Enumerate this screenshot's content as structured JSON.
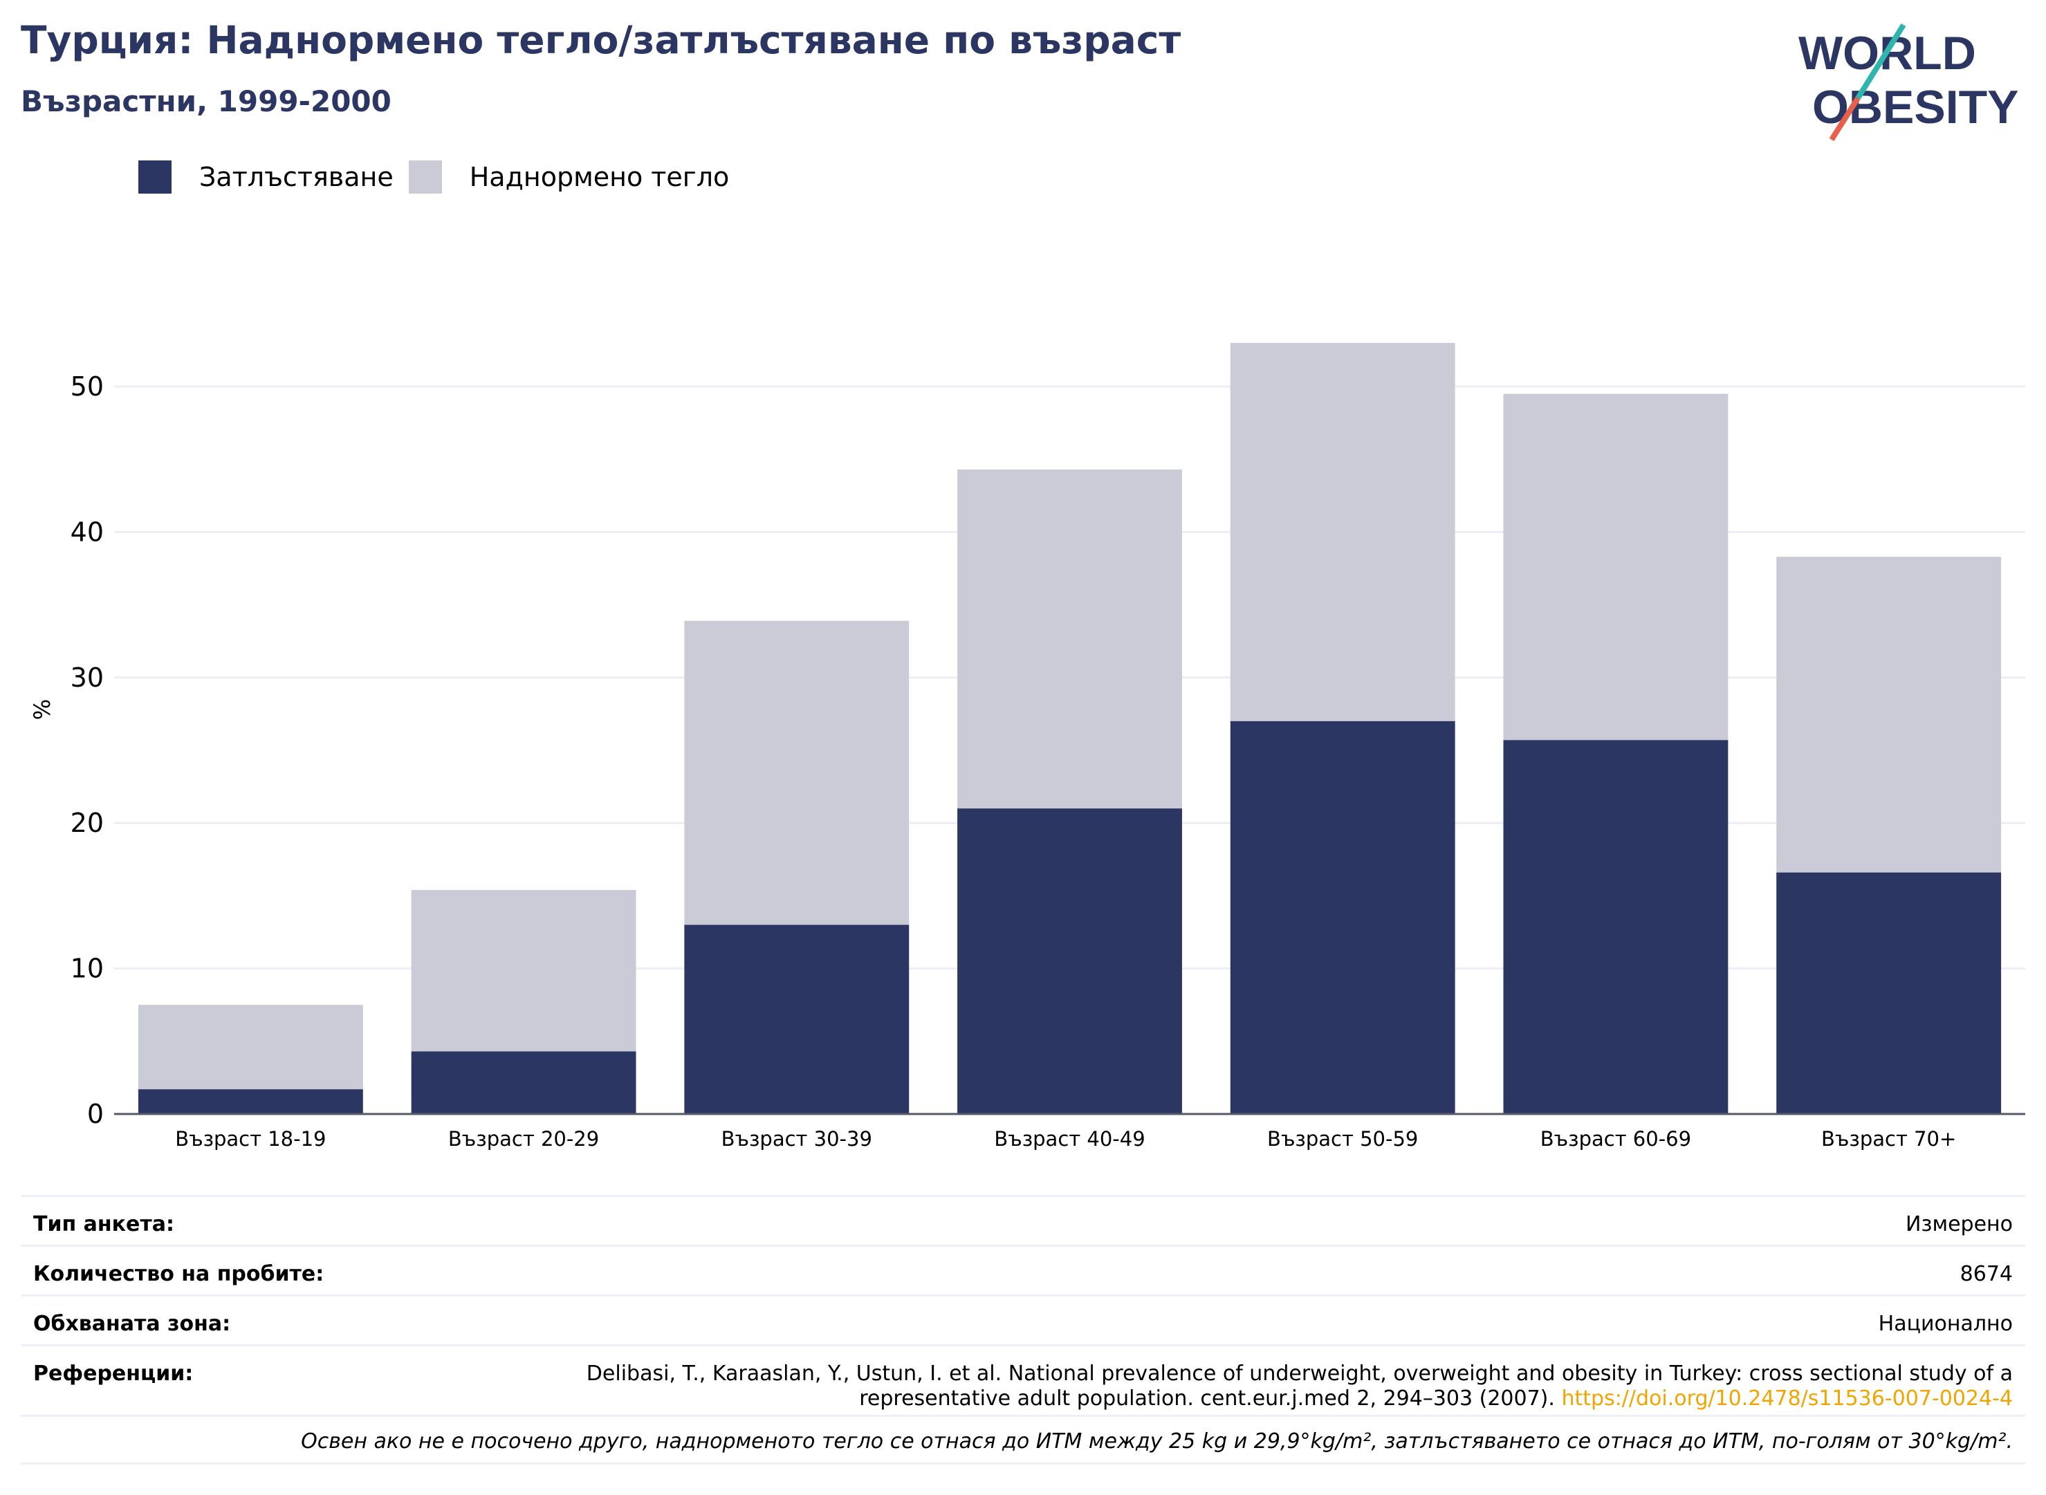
{
  "title": "Турция: Наднормено тегло/затлъстяване по възраст",
  "subtitle": "Възрастни, 1999-2000",
  "logo": {
    "line1": "WORLD",
    "line2": "OBESITY"
  },
  "colors": {
    "obesity": "#2b3663",
    "overweight": "#cacbd7",
    "grid": "#eceef4",
    "title": "#2b3663",
    "link": "#f0a500"
  },
  "chart_data": {
    "type": "bar",
    "stacked": true,
    "categories": [
      "Възраст 18-19",
      "Възраст 20-29",
      "Възраст 30-39",
      "Възраст 40-49",
      "Възраст 50-59",
      "Възраст 60-69",
      "Възраст 70+"
    ],
    "series": [
      {
        "name": "Затлъстяване",
        "values": [
          1.7,
          4.3,
          13.0,
          21.0,
          27.0,
          25.7,
          16.6
        ]
      },
      {
        "name": "Наднормено тегло",
        "values": [
          5.8,
          11.1,
          20.9,
          23.3,
          26.0,
          23.8,
          21.7
        ]
      }
    ],
    "ylabel": "%",
    "ylim": [
      0,
      60
    ],
    "yticks": [
      0,
      10,
      20,
      30,
      40,
      50
    ],
    "grid": true,
    "legend_position": "top-left"
  },
  "meta": {
    "survey_type_label": "Тип анкета:",
    "survey_type_value": "Измерено",
    "sample_size_label": "Количество на пробите:",
    "sample_size_value": "8674",
    "area_label": "Обхваната зона:",
    "area_value": "Национално",
    "references_label": "Референции:",
    "references_line1": "Delibasi, T., Karaaslan, Y., Ustun, I. et al. National prevalence of underweight, overweight and obesity in Turkey: cross sectional study of a",
    "references_line2": "representative adult population. cent.eur.j.med 2, 294–303 (2007).",
    "references_link": "https://doi.org/10.2478/s11536-007-0024-4",
    "note": "Освен ако не е посочено друго, наднорменото тегло се отнася до ИТМ между 25 kg и 29,9°kg/m², затлъстяването се отнася до ИТМ, по-голям от 30°kg/m²."
  }
}
